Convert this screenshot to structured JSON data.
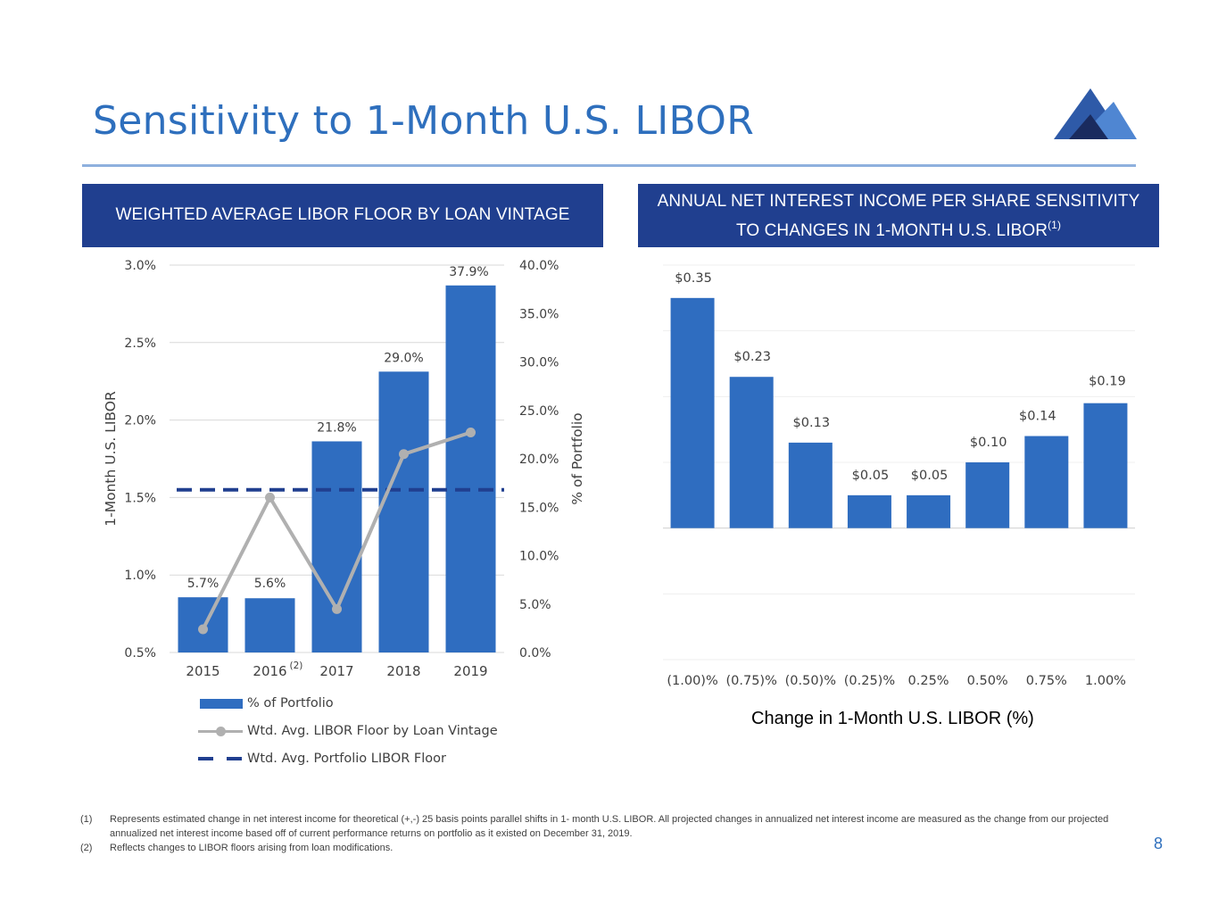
{
  "title": "Sensitivity to 1-Month U.S. LIBOR",
  "page_number": "8",
  "colors": {
    "title": "#2e6fbd",
    "header_bg": "#203f8f",
    "bar": "#2f6dc0",
    "line": "#b0b0b0",
    "dash": "#203f8f",
    "grid": "#d9d9d9"
  },
  "left_panel": {
    "header": "WEIGHTED AVERAGE LIBOR FLOOR BY LOAN VINTAGE"
  },
  "right_panel": {
    "header_line1": "ANNUAL NET INTEREST INCOME PER SHARE SENSITIVITY",
    "header_line2": "TO CHANGES IN 1-MONTH U.S. LIBOR",
    "header_sup": "(1)"
  },
  "legend": {
    "bar_label": "% of Portfolio",
    "line_label": "Wtd. Avg. LIBOR Floor by Loan Vintage",
    "dash_label": "Wtd. Avg. Portfolio LIBOR Floor"
  },
  "footnotes": [
    {
      "num": "(1)",
      "text": "Represents estimated change in net interest income for theoretical (+,-) 25 basis points parallel shifts in 1- month U.S. LIBOR. All projected changes in annualized net interest income are measured as the change from our projected annualized net interest income based off of current performance returns on portfolio as it existed on December 31, 2019."
    },
    {
      "num": "(2)",
      "text": "Reflects changes to LIBOR floors arising from loan modifications."
    }
  ],
  "chart_data": [
    {
      "type": "bar",
      "title": "WEIGHTED AVERAGE LIBOR FLOOR BY LOAN VINTAGE",
      "categories": [
        "2015",
        "2016",
        "2017",
        "2018",
        "2019"
      ],
      "category_sups": [
        "",
        "(2)",
        "",
        "",
        ""
      ],
      "series": [
        {
          "name": "% of Portfolio",
          "type": "bar",
          "axis": "right",
          "values": [
            5.7,
            5.6,
            21.8,
            29.0,
            37.9
          ],
          "labels": [
            "5.7%",
            "5.6%",
            "21.8%",
            "29.0%",
            "37.9%"
          ]
        },
        {
          "name": "Wtd. Avg. LIBOR Floor by Loan Vintage",
          "type": "line",
          "axis": "left",
          "values": [
            0.65,
            1.5,
            0.78,
            1.78,
            1.92
          ]
        },
        {
          "name": "Wtd. Avg. Portfolio LIBOR Floor",
          "type": "dashed-line",
          "axis": "left",
          "value": 1.55
        }
      ],
      "ylabel": "1-Month U.S. LIBOR",
      "ylim": [
        0.5,
        3.0
      ],
      "yticks": [
        "0.5%",
        "1.0%",
        "1.5%",
        "2.0%",
        "2.5%",
        "3.0%"
      ],
      "y2label": "% of Portfolio",
      "y2lim": [
        0,
        40
      ],
      "y2ticks": [
        "0.0%",
        "5.0%",
        "10.0%",
        "15.0%",
        "20.0%",
        "25.0%",
        "30.0%",
        "35.0%",
        "40.0%"
      ],
      "legend_position": "bottom"
    },
    {
      "type": "bar",
      "title": "ANNUAL NET INTEREST INCOME PER SHARE SENSITIVITY TO CHANGES IN 1-MONTH U.S. LIBOR",
      "categories": [
        "(1.00)%",
        "(0.75)%",
        "(0.50)%",
        "(0.25)%",
        "0.25%",
        "0.50%",
        "0.75%",
        "1.00%"
      ],
      "values": [
        0.35,
        0.23,
        0.13,
        0.05,
        0.05,
        0.1,
        0.14,
        0.19
      ],
      "labels": [
        "$0.35",
        "$0.23",
        "$0.13",
        "$0.05",
        "$0.05",
        "$0.10",
        "$0.14",
        "$0.19"
      ],
      "xlabel": "Change in 1-Month U.S. LIBOR (%)",
      "ylim": [
        -0.2,
        0.4
      ],
      "grid": true
    }
  ]
}
